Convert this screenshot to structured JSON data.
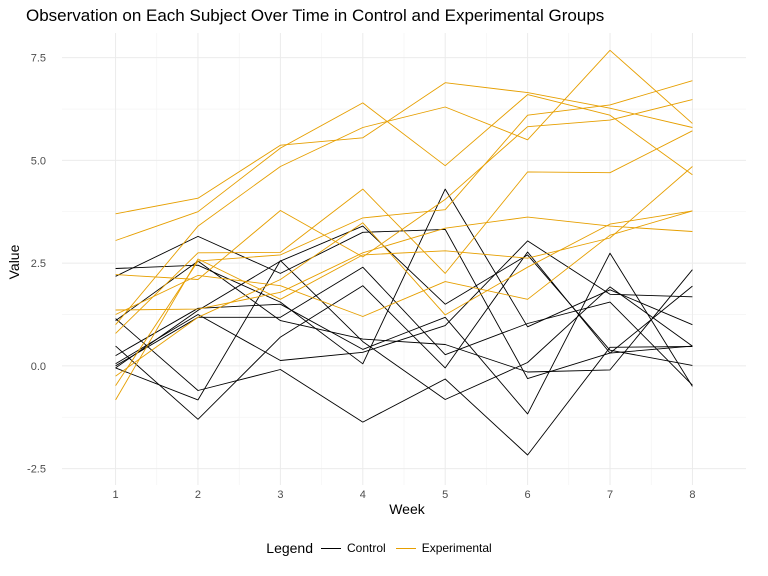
{
  "chart_data": {
    "type": "line",
    "title": "Observation on Each Subject Over Time in Control and Experimental Groups",
    "xlabel": "Week",
    "ylabel": "Value",
    "x": [
      1,
      2,
      3,
      4,
      5,
      6,
      7,
      8
    ],
    "xlim": [
      0.35,
      8.65
    ],
    "ylim": [
      -2.9,
      8.1
    ],
    "xticks": [
      "1",
      "2",
      "3",
      "4",
      "5",
      "6",
      "7",
      "8"
    ],
    "yticks": [
      -2.5,
      0.0,
      2.5,
      5.0,
      7.5
    ],
    "ytick_labels": [
      "-2.5",
      "0.0",
      "2.5",
      "5.0",
      "7.5"
    ],
    "grid": true,
    "legend": {
      "title": "Legend",
      "position": "bottom",
      "entries": [
        {
          "label": "Control",
          "color": "#000000"
        },
        {
          "label": "Experimental",
          "color": "#E69F00"
        }
      ]
    },
    "groups": [
      {
        "name": "Control",
        "color": "#000000",
        "series": [
          {
            "values": [
              1.15,
              -0.6,
              -0.09,
              -1.37,
              -0.32,
              -2.17,
              0.45,
              0.47
            ]
          },
          {
            "values": [
              0.05,
              1.25,
              0.13,
              0.33,
              0.98,
              3.04,
              1.74,
              1.68
            ]
          },
          {
            "values": [
              2.37,
              2.45,
              1.55,
              0.05,
              4.3,
              0.95,
              1.85,
              1.0
            ]
          },
          {
            "values": [
              0.48,
              -1.3,
              0.7,
              1.95,
              -0.05,
              2.77,
              0.31,
              0.48
            ]
          },
          {
            "values": [
              -0.05,
              1.35,
              2.55,
              3.4,
              1.5,
              2.7,
              0.38,
              0.01
            ]
          },
          {
            "values": [
              2.18,
              3.15,
              2.25,
              3.25,
              3.32,
              -0.31,
              0.31,
              1.94
            ]
          },
          {
            "values": [
              1.1,
              2.55,
              1.1,
              0.65,
              0.52,
              -0.15,
              -0.1,
              2.34
            ]
          },
          {
            "values": [
              0.25,
              1.4,
              1.5,
              0.4,
              1.18,
              -1.17,
              2.74,
              -0.5
            ]
          },
          {
            "values": [
              0.0,
              1.18,
              1.18,
              2.4,
              0.27,
              1.03,
              1.55,
              -0.47
            ]
          },
          {
            "values": [
              -0.05,
              -0.83,
              2.56,
              0.59,
              -0.82,
              0.08,
              1.92,
              0.48
            ]
          }
        ]
      },
      {
        "name": "Experimental",
        "color": "#E69F00",
        "series": [
          {
            "values": [
              3.7,
              4.08,
              5.37,
              5.55,
              6.89,
              6.65,
              6.27,
              5.8
            ]
          },
          {
            "values": [
              3.05,
              3.75,
              5.3,
              6.4,
              4.87,
              6.6,
              6.1,
              4.65
            ]
          },
          {
            "values": [
              1.0,
              3.4,
              4.85,
              5.8,
              6.3,
              5.5,
              7.68,
              5.9
            ]
          },
          {
            "values": [
              2.22,
              2.1,
              3.78,
              2.65,
              4.05,
              5.82,
              5.98,
              6.48
            ]
          },
          {
            "values": [
              0.79,
              2.75,
              2.76,
              4.3,
              2.25,
              4.72,
              4.7,
              5.72
            ]
          },
          {
            "values": [
              -0.48,
              2.55,
              2.7,
              3.6,
              3.8,
              6.1,
              6.35,
              6.94
            ]
          },
          {
            "values": [
              1.36,
              1.38,
              1.79,
              2.75,
              3.35,
              3.62,
              3.4,
              3.27
            ]
          },
          {
            "values": [
              1.25,
              2.2,
              1.95,
              1.2,
              2.05,
              1.62,
              3.18,
              3.77
            ]
          },
          {
            "values": [
              -0.83,
              2.6,
              1.62,
              2.7,
              2.8,
              2.62,
              3.11,
              4.85
            ]
          },
          {
            "values": [
              -0.25,
              1.18,
              2.1,
              3.48,
              1.24,
              2.4,
              3.45,
              3.77
            ]
          }
        ]
      }
    ]
  }
}
